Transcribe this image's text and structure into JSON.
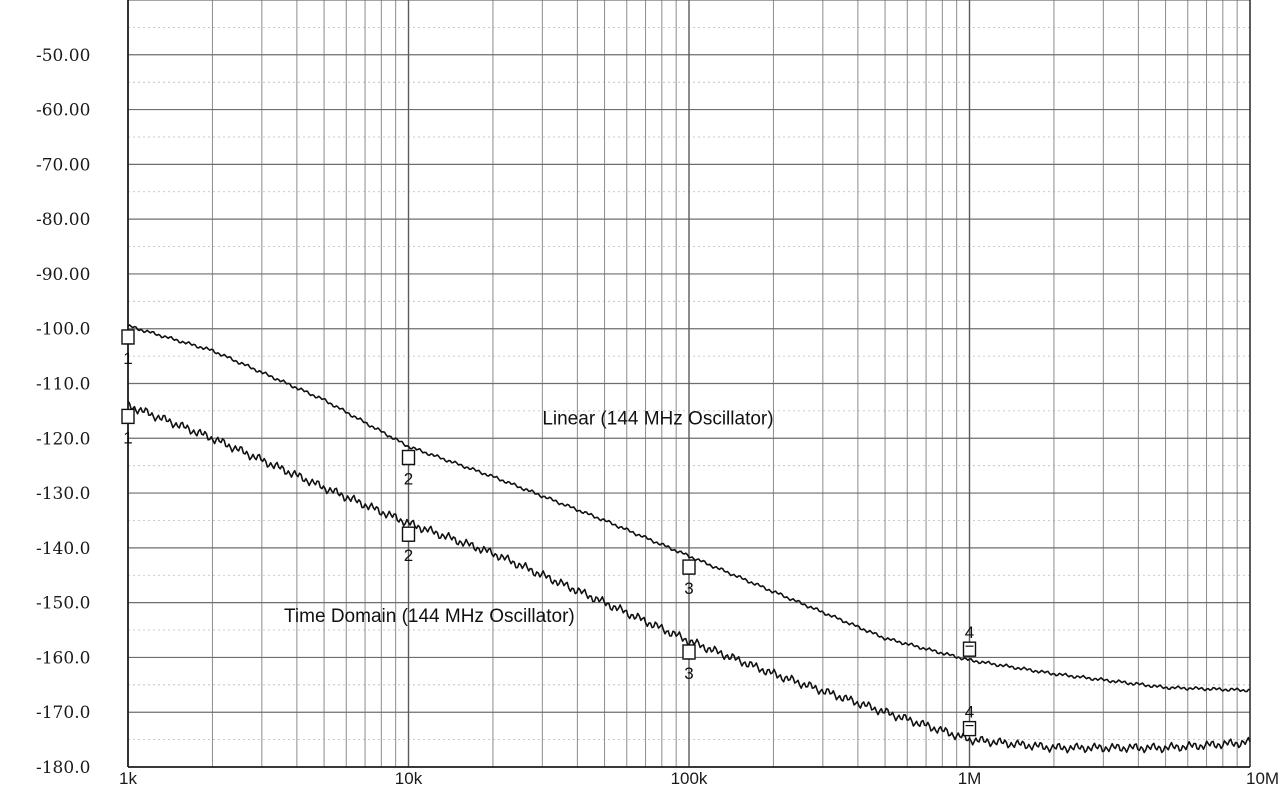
{
  "chart_data": {
    "type": "line",
    "x_scale": "log",
    "xlim": [
      1000,
      10000000
    ],
    "ylim": [
      -180,
      -40
    ],
    "grid": true,
    "y_ticks": [
      {
        "value": -50,
        "label": "-50.00"
      },
      {
        "value": -60,
        "label": "-60.00"
      },
      {
        "value": -70,
        "label": "-70.00"
      },
      {
        "value": -80,
        "label": "-80.00"
      },
      {
        "value": -90,
        "label": "-90.00"
      },
      {
        "value": -100,
        "label": "-100.0"
      },
      {
        "value": -110,
        "label": "-110.0"
      },
      {
        "value": -120,
        "label": "-120.0"
      },
      {
        "value": -130,
        "label": "-130.0"
      },
      {
        "value": -140,
        "label": "-140.0"
      },
      {
        "value": -150,
        "label": "-150.0"
      },
      {
        "value": -160,
        "label": "-160.0"
      },
      {
        "value": -170,
        "label": "-170.0"
      },
      {
        "value": -180,
        "label": "-180.0"
      }
    ],
    "x_ticks": [
      {
        "value": 1000,
        "label": "1k"
      },
      {
        "value": 10000,
        "label": "10k"
      },
      {
        "value": 100000,
        "label": "100k"
      },
      {
        "value": 1000000,
        "label": "1M"
      },
      {
        "value": 10000000,
        "label": "10M"
      }
    ],
    "series": [
      {
        "label": "Linear (144 MHz Oscillator)",
        "color": "#111111",
        "x": [
          1000,
          2000,
          5000,
          10000,
          20000,
          50000,
          100000,
          200000,
          500000,
          1000000,
          2000000,
          5000000,
          10000000
        ],
        "y": [
          -99.5,
          -104,
          -113,
          -121.5,
          -127,
          -135,
          -141.5,
          -148,
          -156.5,
          -160.5,
          -163,
          -165.5,
          -166
        ],
        "markers": [
          {
            "x": 1000,
            "y": -99.5,
            "label": "1"
          },
          {
            "x": 10000,
            "y": -121.5,
            "label": "2"
          },
          {
            "x": 100000,
            "y": -141.5,
            "label": "3"
          },
          {
            "x": 1000000,
            "y": -160.5,
            "label": "4"
          }
        ]
      },
      {
        "label": "Time Domain (144 MHz Oscillator)",
        "color": "#111111",
        "x": [
          1000,
          2000,
          5000,
          10000,
          20000,
          50000,
          100000,
          200000,
          500000,
          1000000,
          2000000,
          5000000,
          10000000
        ],
        "y": [
          -114,
          -120,
          -129,
          -135.5,
          -141,
          -150,
          -157,
          -163,
          -170,
          -175,
          -176.5,
          -176.5,
          -175.5
        ],
        "markers": [
          {
            "x": 1000,
            "y": -114,
            "label": "1"
          },
          {
            "x": 10000,
            "y": -135.5,
            "label": "2"
          },
          {
            "x": 100000,
            "y": -157,
            "label": "3"
          },
          {
            "x": 1000000,
            "y": -175,
            "label": "4"
          }
        ]
      }
    ]
  }
}
